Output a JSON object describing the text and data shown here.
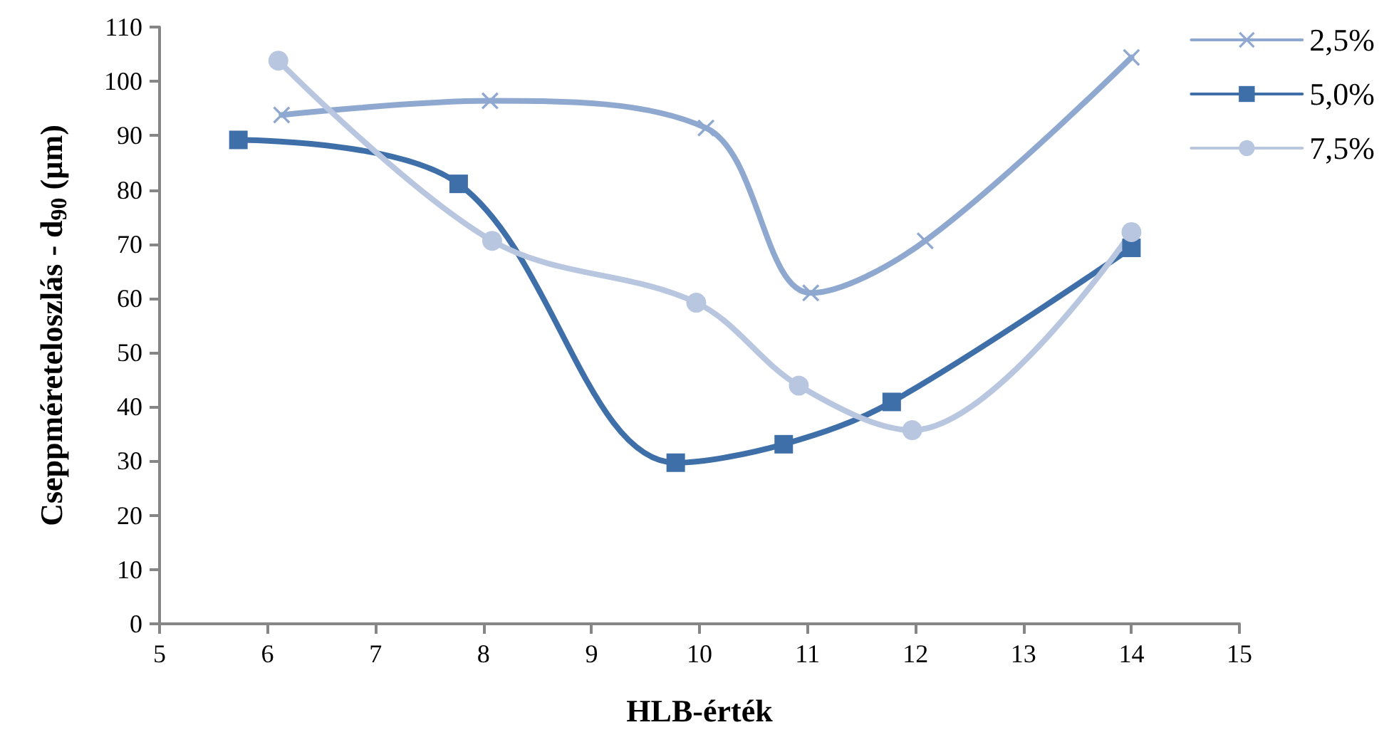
{
  "chart_data": {
    "type": "line",
    "xlabel": "HLB-érték",
    "ylabel": "Cseppméreteloszlás - d$_{90}$ (µm)",
    "xlim": [
      5,
      15
    ],
    "xticks": [
      5,
      6,
      7,
      8,
      9,
      10,
      11,
      12,
      13,
      14,
      15
    ],
    "ylim": [
      0,
      110
    ],
    "yticks": [
      0,
      10,
      20,
      30,
      40,
      50,
      60,
      70,
      80,
      90,
      100,
      110
    ],
    "grid": false,
    "legend": "right",
    "line_style": "solid",
    "series": [
      {
        "name": "2,5%",
        "color": "#8fa8d0",
        "marker": "cross",
        "x": [
          6.13,
          8.06,
          10.06,
          11.03,
          12.09,
          14.0
        ],
        "values": [
          93.8,
          96.4,
          91.4,
          61.0,
          70.6,
          104.4
        ]
      },
      {
        "name": "5,0%",
        "color": "#3f6fa8",
        "marker": "square",
        "x": [
          5.73,
          7.77,
          9.78,
          10.78,
          11.78,
          14.0
        ],
        "values": [
          89.2,
          81.1,
          29.7,
          33.1,
          40.9,
          69.3
        ]
      },
      {
        "name": "7,5%",
        "color": "#b8c6e0",
        "marker": "circle",
        "x": [
          6.1,
          8.08,
          9.97,
          10.92,
          11.97,
          14.0
        ],
        "values": [
          103.8,
          70.6,
          59.2,
          43.9,
          35.7,
          72.2
        ]
      }
    ]
  }
}
